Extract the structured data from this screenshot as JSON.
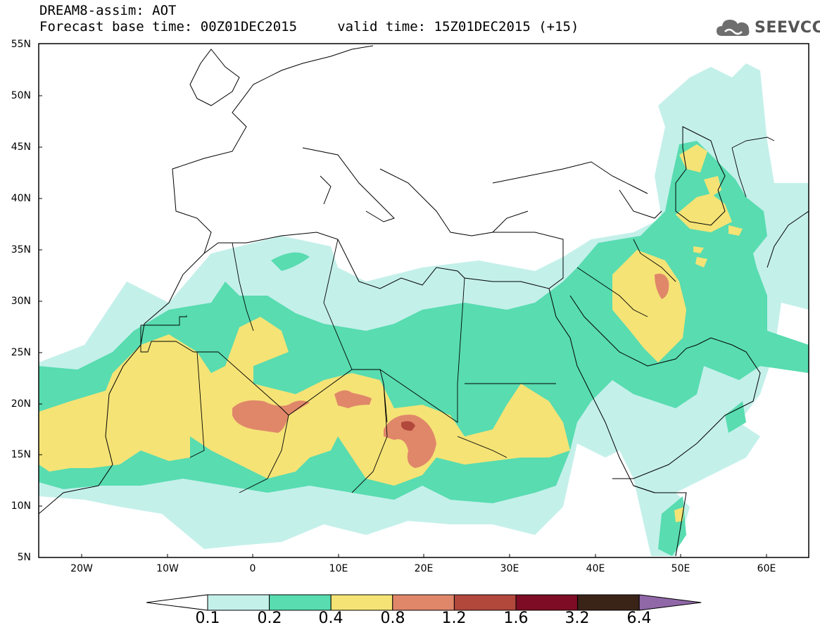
{
  "header": {
    "title_line1": "DREAM8-assim: AOT",
    "title_line2": "Forecast base time: 00Z01DEC2015     valid time: 15Z01DEC2015 (+15)"
  },
  "logo": {
    "text": "SEEVCCC",
    "icon": "cloud-icon"
  },
  "map": {
    "latitude_labels": [
      "55N",
      "50N",
      "45N",
      "40N",
      "35N",
      "30N",
      "25N",
      "20N",
      "15N",
      "10N",
      "5N"
    ],
    "longitude_labels": [
      "20W",
      "10W",
      "0",
      "10E",
      "20E",
      "30E",
      "40E",
      "50E",
      "60E"
    ],
    "lon_range": [
      -25,
      65
    ],
    "lat_range": [
      5,
      55
    ]
  },
  "colorbar": {
    "labels": [
      "0.1",
      "0.2",
      "0.4",
      "0.8",
      "1.2",
      "1.6",
      "3.2",
      "6.4"
    ],
    "colors": [
      "#ffffff",
      "#c4f0ea",
      "#58dcb0",
      "#f5e376",
      "#e0876a",
      "#b2473c",
      "#7d0c24",
      "#3a2418",
      "#9068a8"
    ]
  }
}
